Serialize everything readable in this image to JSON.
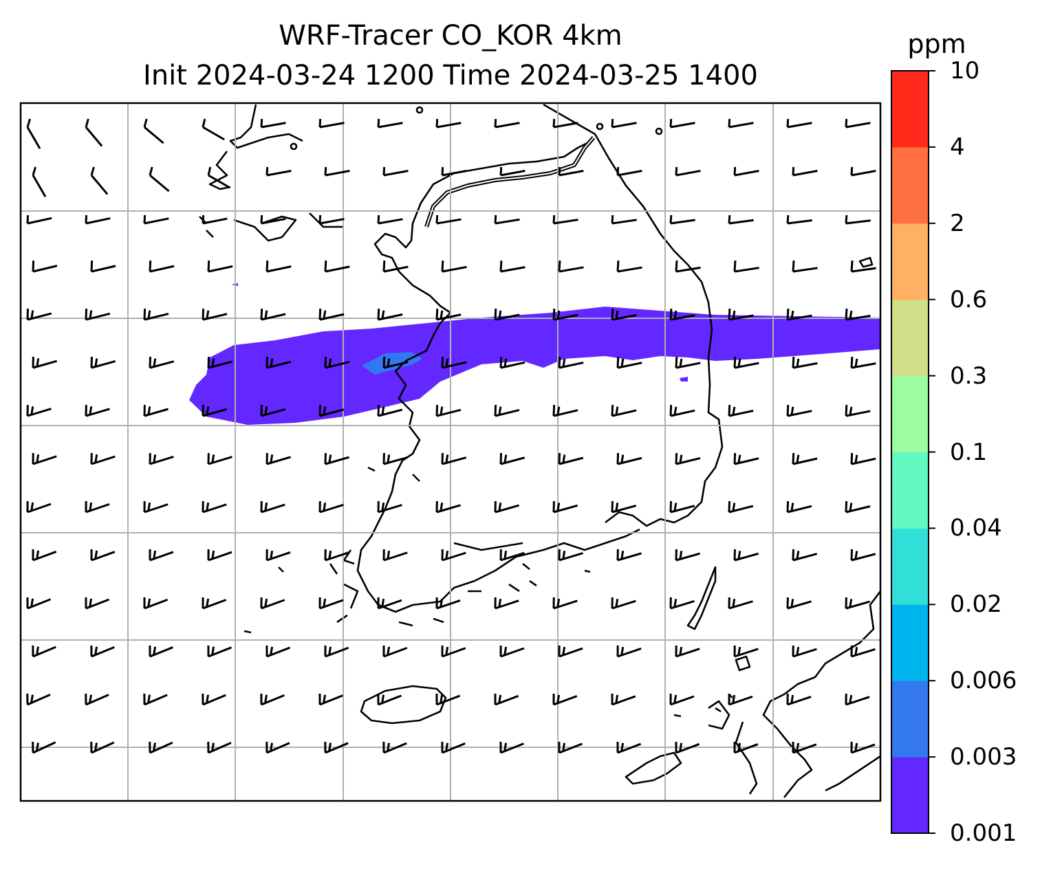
{
  "title": {
    "line1": "WRF-Tracer CO_KOR 4km",
    "line2": "Init 2024-03-24 1200 Time 2024-03-25 1400"
  },
  "map": {
    "field": "CO tracer concentration",
    "plume_color": "#6328ff",
    "plume_core_color": "#3278f0",
    "gridline_color": "#b0b0b0",
    "coastline_color": "#000000",
    "grid_divisions": {
      "columns": 8,
      "rows": 6
    },
    "wind_barbs": "westerly to west-southwesterly flow over the Yellow Sea and Korean Peninsula"
  },
  "colorbar": {
    "title": "ppm",
    "levels": [
      "0.001",
      "0.003",
      "0.006",
      "0.02",
      "0.04",
      "0.1",
      "0.3",
      "0.6",
      "2",
      "4",
      "10"
    ],
    "colors": [
      "#6328ff",
      "#3478f0",
      "#00b4ee",
      "#30e0d8",
      "#62f8c0",
      "#9cfca0",
      "#cfe088",
      "#ffb062",
      "#ff7040",
      "#ff2a1a"
    ]
  }
}
